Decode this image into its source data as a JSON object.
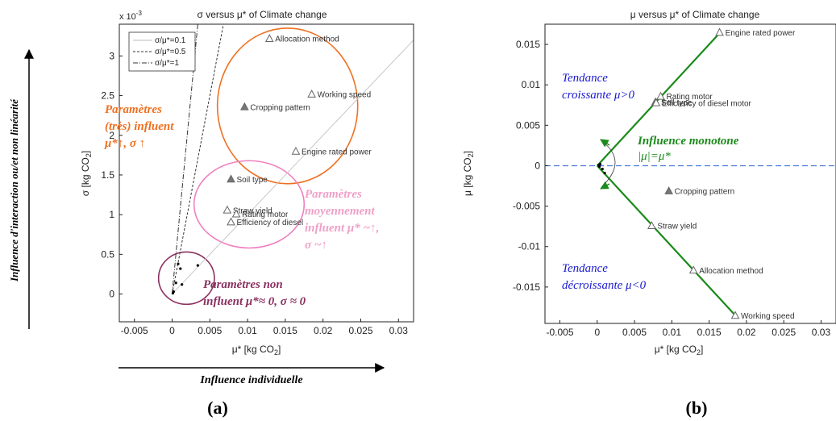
{
  "colors": {
    "orange": "#f07020",
    "pink": "#f080c0",
    "pink_text": "#f0a0c8",
    "maroon": "#8b3060",
    "green": "#1a8a1a",
    "green_text": "#1a8a1a",
    "blue": "#1a1ad0",
    "dash": "#4a7ad8"
  },
  "outer": {
    "ylabel_lines": [
      "Influence d'interaction ou/et non linéarité"
    ],
    "xlabel": "Influence individuelle"
  },
  "panel_labels": {
    "a": "(a)",
    "b": "(b)"
  },
  "chart_data": [
    {
      "type": "scatter",
      "title": "σ versus μ* of Climate change",
      "xlabel": "μ* [kg CO2]",
      "ylabel": "σ [kg CO2]",
      "y_multiplier": "x 10",
      "y_multiplier_exp": "-3",
      "xlim": [
        -0.007,
        0.032
      ],
      "ylim": [
        -0.00035,
        0.0034
      ],
      "xticks": [
        -0.005,
        0,
        0.005,
        0.01,
        0.015,
        0.02,
        0.025,
        0.03
      ],
      "xtick_labels": [
        "-0.005",
        "0",
        "0.005",
        "0.01",
        "0.015",
        "0.02",
        "0.025",
        "0.03"
      ],
      "yticks": [
        0,
        0.0005,
        0.001,
        0.0015,
        0.002,
        0.0025,
        0.003
      ],
      "ytick_labels": [
        "0",
        "0.5",
        "1",
        "1.5",
        "2",
        "2.5",
        "3"
      ],
      "legend_position": "top-left",
      "lines": [
        {
          "name": "σ/μ*=0.1",
          "ratio": 0.1,
          "style": "solid"
        },
        {
          "name": "σ/μ*=0.5",
          "ratio": 0.5,
          "style": "dashed"
        },
        {
          "name": "σ/μ*=1",
          "ratio": 1,
          "style": "dashdot"
        }
      ],
      "points": [
        {
          "label": "Allocation method",
          "x": 0.0129,
          "y": 0.00322,
          "filled": false
        },
        {
          "label": "Working speed",
          "x": 0.0185,
          "y": 0.00252,
          "filled": false
        },
        {
          "label": "Cropping pattern",
          "x": 0.0096,
          "y": 0.00236,
          "filled": true
        },
        {
          "label": "Engine rated power",
          "x": 0.0164,
          "y": 0.0018,
          "filled": false
        },
        {
          "label": "Soil type",
          "x": 0.0078,
          "y": 0.00145,
          "filled": true
        },
        {
          "label": "Straw yield",
          "x": 0.0073,
          "y": 0.00106,
          "filled": false
        },
        {
          "label": "Rating motor",
          "x": 0.0085,
          "y": 0.00101,
          "filled": false
        },
        {
          "label": "Efficiency of diesel",
          "x": 0.0078,
          "y": 0.00091,
          "filled": false
        }
      ],
      "small_points": [
        {
          "x": 0.0001,
          "y": 1e-05
        },
        {
          "x": 0.0005,
          "y": 0.00014
        },
        {
          "x": 0.0008,
          "y": 0.00038
        },
        {
          "x": 0.0011,
          "y": 0.00032
        },
        {
          "x": 0.0013,
          "y": 0.00012
        },
        {
          "x": 0.0034,
          "y": 0.00036
        },
        {
          "x": 0.0002,
          "y": 3e-05
        }
      ],
      "groups": [
        {
          "label_lines": [
            "Paramètres",
            "(très) influent",
            "μ*↑, σ ↑"
          ],
          "color": "orange",
          "cx": 0.0153,
          "cy": 0.00237,
          "rx": 0.0093,
          "ry": 0.00098
        },
        {
          "label_lines": [
            "Paramètres",
            "moyennement",
            "influent μ* ~↑,",
            "σ ~↑"
          ],
          "color": "pink",
          "cx": 0.0102,
          "cy": 0.00113,
          "rx": 0.0073,
          "ry": 0.00055
        },
        {
          "label_lines": [
            "Paramètres non",
            "influent μ*≈ 0, σ ≈ 0"
          ],
          "color": "maroon",
          "cx": 0.0019,
          "cy": 0.0002,
          "rx": 0.0037,
          "ry": 0.00033
        }
      ]
    },
    {
      "type": "scatter",
      "title": "μ versus μ* of Climate change",
      "xlabel": "μ* [kg CO2]",
      "ylabel": "μ [kg CO2]",
      "xlim": [
        -0.007,
        0.032
      ],
      "ylim": [
        -0.0195,
        0.0175
      ],
      "xticks": [
        -0.005,
        0,
        0.005,
        0.01,
        0.015,
        0.02,
        0.025,
        0.03
      ],
      "xtick_labels": [
        "-0.005",
        "0",
        "0.005",
        "0.01",
        "0.015",
        "0.02",
        "0.025",
        "0.03"
      ],
      "yticks": [
        -0.015,
        -0.01,
        -0.005,
        0,
        0.005,
        0.01,
        0.015
      ],
      "ytick_labels": [
        "-0.015",
        "-0.01",
        "-0.005",
        "0",
        "0.005",
        "0.01",
        "0.015"
      ],
      "points": [
        {
          "label": "Engine rated power",
          "x": 0.0164,
          "y": 0.0165,
          "filled": false
        },
        {
          "label": "Rating motor",
          "x": 0.0085,
          "y": 0.0086,
          "filled": false
        },
        {
          "label": "Soil type",
          "x": 0.0078,
          "y": 0.0079,
          "filled": true
        },
        {
          "label": "Efficiency of diesel motor",
          "x": 0.0079,
          "y": 0.0078,
          "filled": false
        },
        {
          "label": "Cropping pattern",
          "x": 0.0096,
          "y": -0.0031,
          "filled": true
        },
        {
          "label": "Straw yield",
          "x": 0.0073,
          "y": -0.0074,
          "filled": false
        },
        {
          "label": "Allocation method",
          "x": 0.0129,
          "y": -0.0129,
          "filled": false
        },
        {
          "label": "Working speed",
          "x": 0.0185,
          "y": -0.0185,
          "filled": false
        }
      ],
      "small_points": [
        {
          "x": 0.0002,
          "y": 0.0001
        },
        {
          "x": 0.0004,
          "y": 0.0002
        },
        {
          "x": 0.0007,
          "y": -0.0004
        },
        {
          "x": 0.001,
          "y": -0.0009
        },
        {
          "x": 0.0003,
          "y": -0.0001
        }
      ],
      "boundary_lines": [
        {
          "from": [
            0,
            0
          ],
          "to": [
            0.0166,
            0.0166
          ]
        },
        {
          "from": [
            0,
            0
          ],
          "to": [
            0.0188,
            -0.0188
          ]
        }
      ],
      "zero_line": 0,
      "annotations": [
        {
          "lines": [
            "Tendance",
            "croissante μ>0"
          ],
          "color": "blue"
        },
        {
          "lines": [
            "Tendance",
            "décroissante μ<0"
          ],
          "color": "blue"
        },
        {
          "lines": [
            "Influence monotone",
            "|μ|=μ*"
          ],
          "color": "green"
        }
      ]
    }
  ]
}
